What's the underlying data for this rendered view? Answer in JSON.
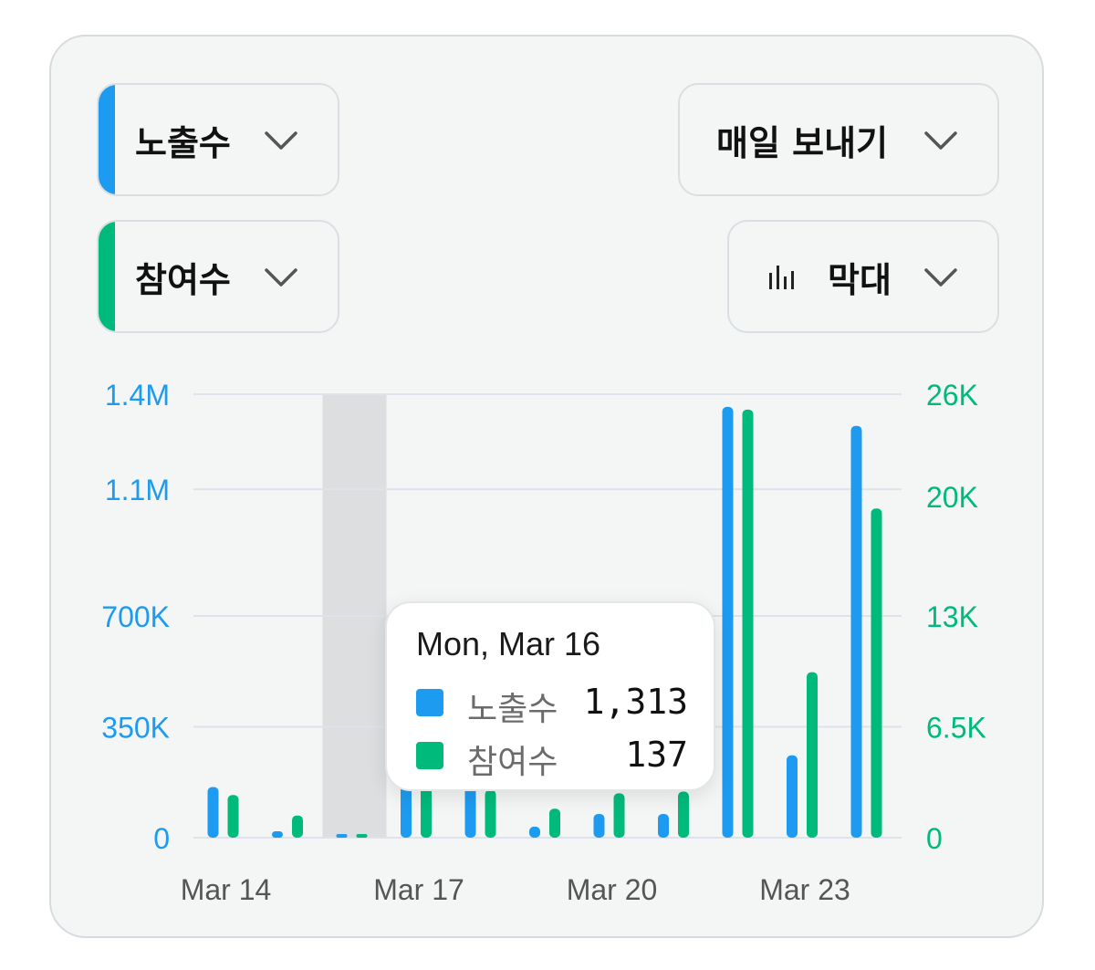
{
  "controls": {
    "metric1": {
      "label": "노출수",
      "color": "#1d9bf0"
    },
    "metric2": {
      "label": "참여수",
      "color": "#00ba7c"
    },
    "export": {
      "label": "매일 보내기"
    },
    "chart_type": {
      "label": "막대",
      "icon": "bar-chart-icon"
    }
  },
  "tooltip": {
    "title": "Mon, Mar 16",
    "rows": [
      {
        "name": "노출수",
        "value": "1,313",
        "color": "#1d9bf0"
      },
      {
        "name": "참여수",
        "value": "137",
        "color": "#00ba7c"
      }
    ]
  },
  "chart_data": {
    "type": "bar",
    "categories": [
      "Mar 14",
      "Mar 15",
      "Mar 16",
      "Mar 17",
      "Mar 18",
      "Mar 19",
      "Mar 20",
      "Mar 21",
      "Mar 22",
      "Mar 23",
      "Mar 24"
    ],
    "x_tick_labels": [
      "Mar 14",
      "Mar 17",
      "Mar 20",
      "Mar 23"
    ],
    "highlighted_category": "Mar 16",
    "series": [
      {
        "name": "노출수",
        "axis": "left",
        "color": "#1d9bf0",
        "values": [
          160000,
          20000,
          1313,
          180000,
          170000,
          35000,
          75000,
          75000,
          1360000,
          260000,
          1300000
        ]
      },
      {
        "name": "참여수",
        "axis": "right",
        "color": "#00ba7c",
        "values": [
          2500,
          1300,
          137,
          3000,
          2800,
          1700,
          2600,
          2700,
          25100,
          9700,
          19300
        ]
      }
    ],
    "y_left": {
      "ticks": [
        0,
        350000,
        700000,
        1100000,
        1400000
      ],
      "tick_labels": [
        "0",
        "350K",
        "700K",
        "1.1M",
        "1.4M"
      ],
      "color": "#1d9bf0"
    },
    "y_right": {
      "ticks": [
        0,
        6500,
        13000,
        20000,
        26000
      ],
      "tick_labels": [
        "0",
        "6.5K",
        "13K",
        "20K",
        "26K"
      ],
      "color": "#00ba7c"
    },
    "grid": true
  }
}
